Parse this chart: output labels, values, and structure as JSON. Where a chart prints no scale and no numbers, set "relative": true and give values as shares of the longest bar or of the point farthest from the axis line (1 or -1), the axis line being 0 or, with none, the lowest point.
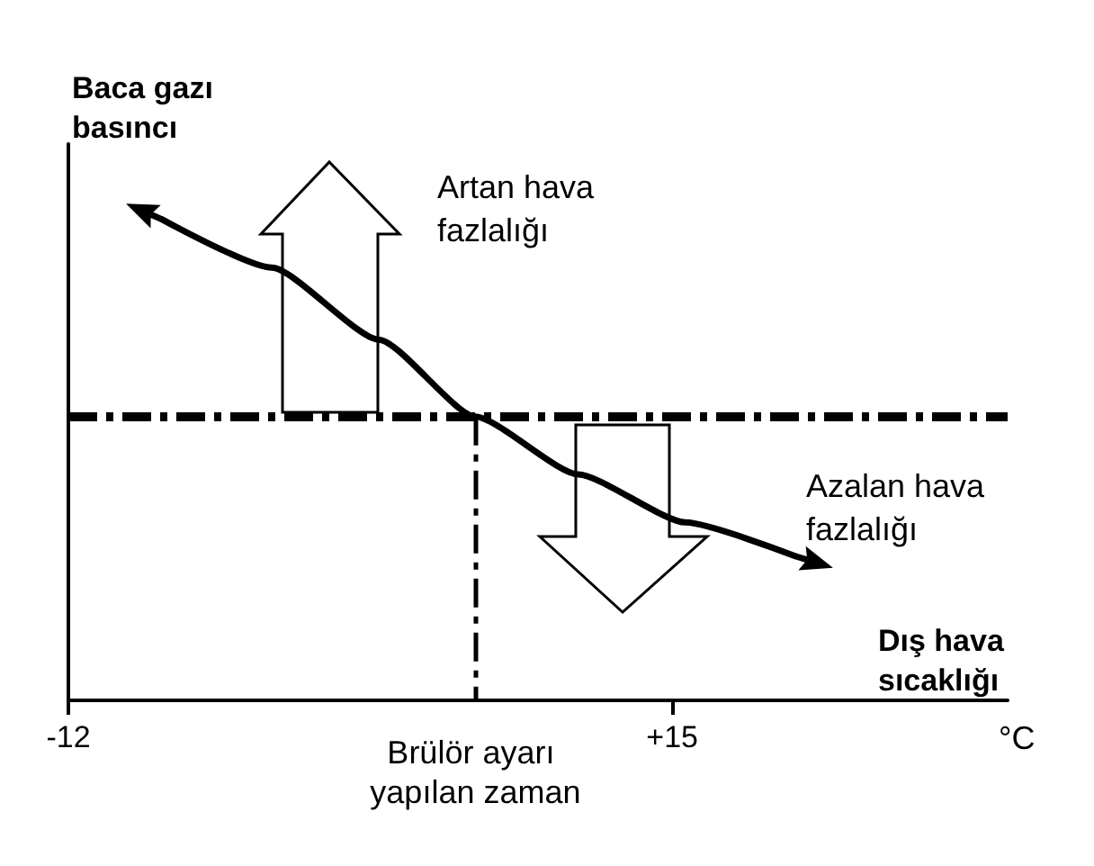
{
  "chart_data": {
    "type": "line",
    "relative": true,
    "xlabel": "Dış hava sıcaklığı",
    "ylabel": "Baca gazı basıncı",
    "x": [
      -7.8,
      -2.9,
      1.9,
      6.2,
      10.8,
      15.6,
      20.5
    ],
    "series": [
      {
        "color": "#000000",
        "values": [
          1,
          0.9,
          0.75,
          0.59,
          0.47,
          0.37,
          0.3
        ]
      }
    ],
    "xlim": [
      -12,
      30
    ],
    "xticks": [
      {
        "value": -12,
        "label": "-12"
      },
      {
        "value": 15,
        "label": "+15"
      }
    ],
    "ref_lines": [
      {
        "axis": "y",
        "value": 0.59,
        "label": null,
        "color": "#000000",
        "line_style": "dashed"
      },
      {
        "axis": "x",
        "value": 6.2,
        "label": "Brülör ayarı yapılan zaman",
        "color": "#000000",
        "line_style": "dashed"
      }
    ],
    "annotations": [
      "Artan hava fazlalığı",
      "Azalan hava fazlalığı",
      "°C"
    ],
    "grid": false,
    "marker": "none",
    "line_style": "solid"
  }
}
